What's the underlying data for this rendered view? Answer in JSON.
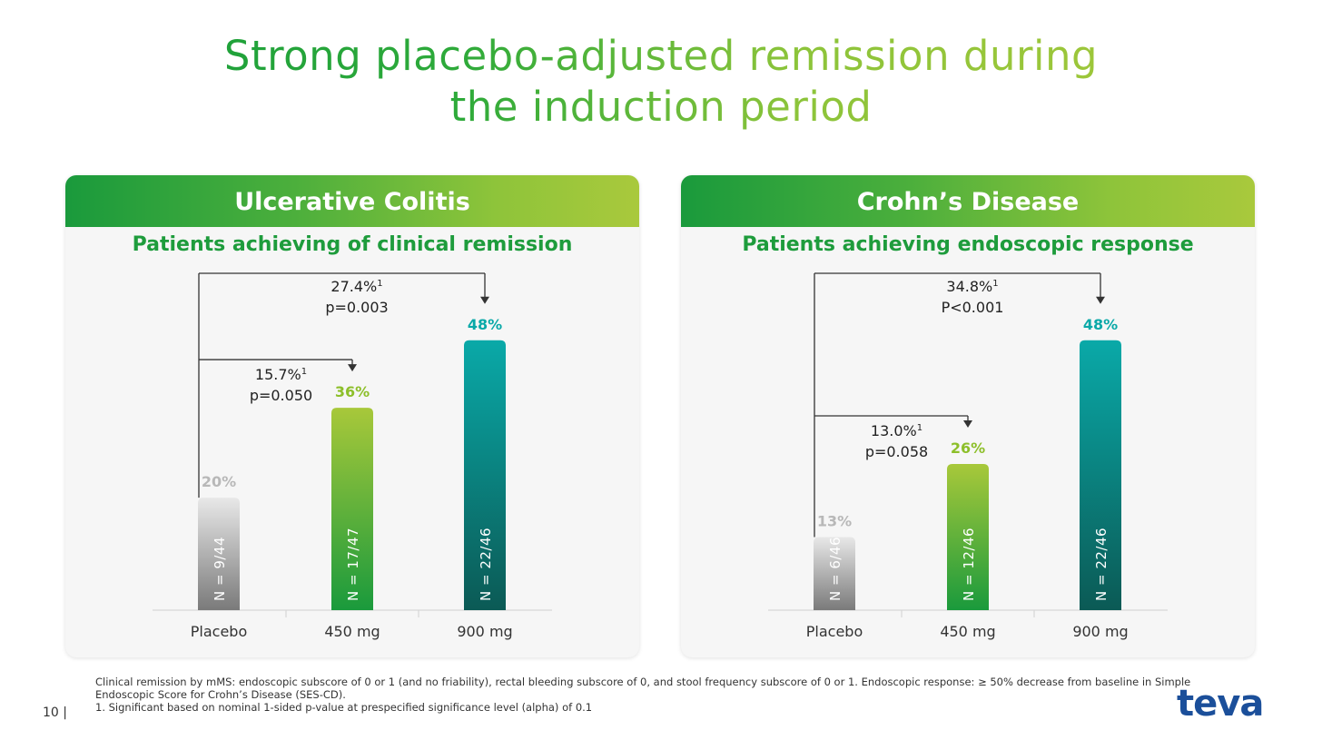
{
  "title": {
    "line1": "Strong placebo-adjusted remission during",
    "line2": "the induction period"
  },
  "colors": {
    "green_dark": "#1a9a3c",
    "green_light": "#a8c83a",
    "teal": "#0aa9a8",
    "teal_dark": "#0b5a55",
    "gray": "#b0b0b0"
  },
  "chart_data": [
    {
      "type": "bar",
      "panel_title": "Ulcerative Colitis",
      "title": "Patients achieving of clinical remission",
      "categories": [
        "Placebo",
        "450 mg",
        "900 mg"
      ],
      "values": [
        20,
        36,
        48
      ],
      "value_labels": [
        "20%",
        "36%",
        "48%"
      ],
      "n_labels": [
        "N = 9/44",
        "N = 17/47",
        "N = 22/46"
      ],
      "ylim": [
        0,
        52
      ],
      "comparisons": [
        {
          "to": "450 mg",
          "diff_label": "15.7%",
          "sup": "1",
          "p_label": "p=0.050"
        },
        {
          "to": "900 mg",
          "diff_label": "27.4%",
          "sup": "1",
          "p_label": "p=0.003"
        }
      ]
    },
    {
      "type": "bar",
      "panel_title": "Crohn’s Disease",
      "title": "Patients achieving endoscopic response",
      "categories": [
        "Placebo",
        "450 mg",
        "900 mg"
      ],
      "values": [
        13,
        26,
        48
      ],
      "value_labels": [
        "13%",
        "26%",
        "48%"
      ],
      "n_labels": [
        "N = 6/46",
        "N = 12/46",
        "N = 22/46"
      ],
      "ylim": [
        0,
        52
      ],
      "comparisons": [
        {
          "to": "450 mg",
          "diff_label": "13.0%",
          "sup": "1",
          "p_label": "p=0.058"
        },
        {
          "to": "900 mg",
          "diff_label": "34.8%",
          "sup": "1",
          "p_label": "P<0.001"
        }
      ]
    }
  ],
  "footnotes": {
    "line1": "Clinical remission by mMS: endoscopic subscore of 0 or 1 (and no friability), rectal bleeding subscore of 0, and stool frequency subscore of 0 or 1. Endoscopic response: ≥ 50% decrease from baseline in Simple Endoscopic Score for Crohn’s Disease (SES-CD).",
    "line2": "1. Significant based on nominal 1-sided p-value at prespecified significance level (alpha) of 0.1"
  },
  "page_number": "10 |",
  "logo_text": "teva"
}
